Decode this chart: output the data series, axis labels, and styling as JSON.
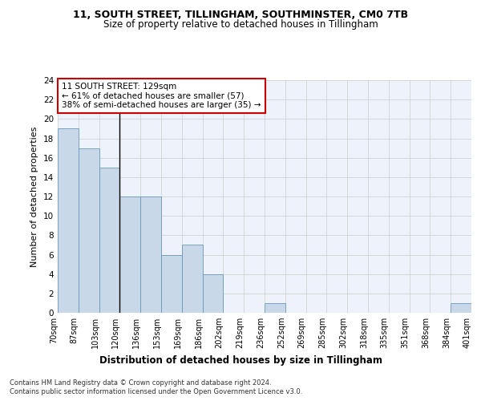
{
  "title": "11, SOUTH STREET, TILLINGHAM, SOUTHMINSTER, CM0 7TB",
  "subtitle": "Size of property relative to detached houses in Tillingham",
  "xlabel_bottom": "Distribution of detached houses by size in Tillingham",
  "ylabel": "Number of detached properties",
  "bar_values": [
    19,
    17,
    15,
    12,
    12,
    6,
    7,
    4,
    0,
    0,
    1,
    0,
    0,
    0,
    0,
    0,
    0,
    0,
    0,
    1
  ],
  "bin_labels": [
    "70sqm",
    "87sqm",
    "103sqm",
    "120sqm",
    "136sqm",
    "153sqm",
    "169sqm",
    "186sqm",
    "202sqm",
    "219sqm",
    "236sqm",
    "252sqm",
    "269sqm",
    "285sqm",
    "302sqm",
    "318sqm",
    "335sqm",
    "351sqm",
    "368sqm",
    "384sqm",
    "401sqm"
  ],
  "bar_color": "#c8d8e8",
  "bar_edgecolor": "#6699bb",
  "bar_linewidth": 0.6,
  "grid_color": "#cccccc",
  "background_color": "#eef2fa",
  "annotation_text": "11 SOUTH STREET: 129sqm\n← 61% of detached houses are smaller (57)\n38% of semi-detached houses are larger (35) →",
  "annotation_box_color": "#ffffff",
  "annotation_box_edgecolor": "#cc0000",
  "vline_bar_index": 2.5,
  "ylim": [
    0,
    24
  ],
  "yticks": [
    0,
    2,
    4,
    6,
    8,
    10,
    12,
    14,
    16,
    18,
    20,
    22,
    24
  ],
  "footer_line1": "Contains HM Land Registry data © Crown copyright and database right 2024.",
  "footer_line2": "Contains public sector information licensed under the Open Government Licence v3.0."
}
